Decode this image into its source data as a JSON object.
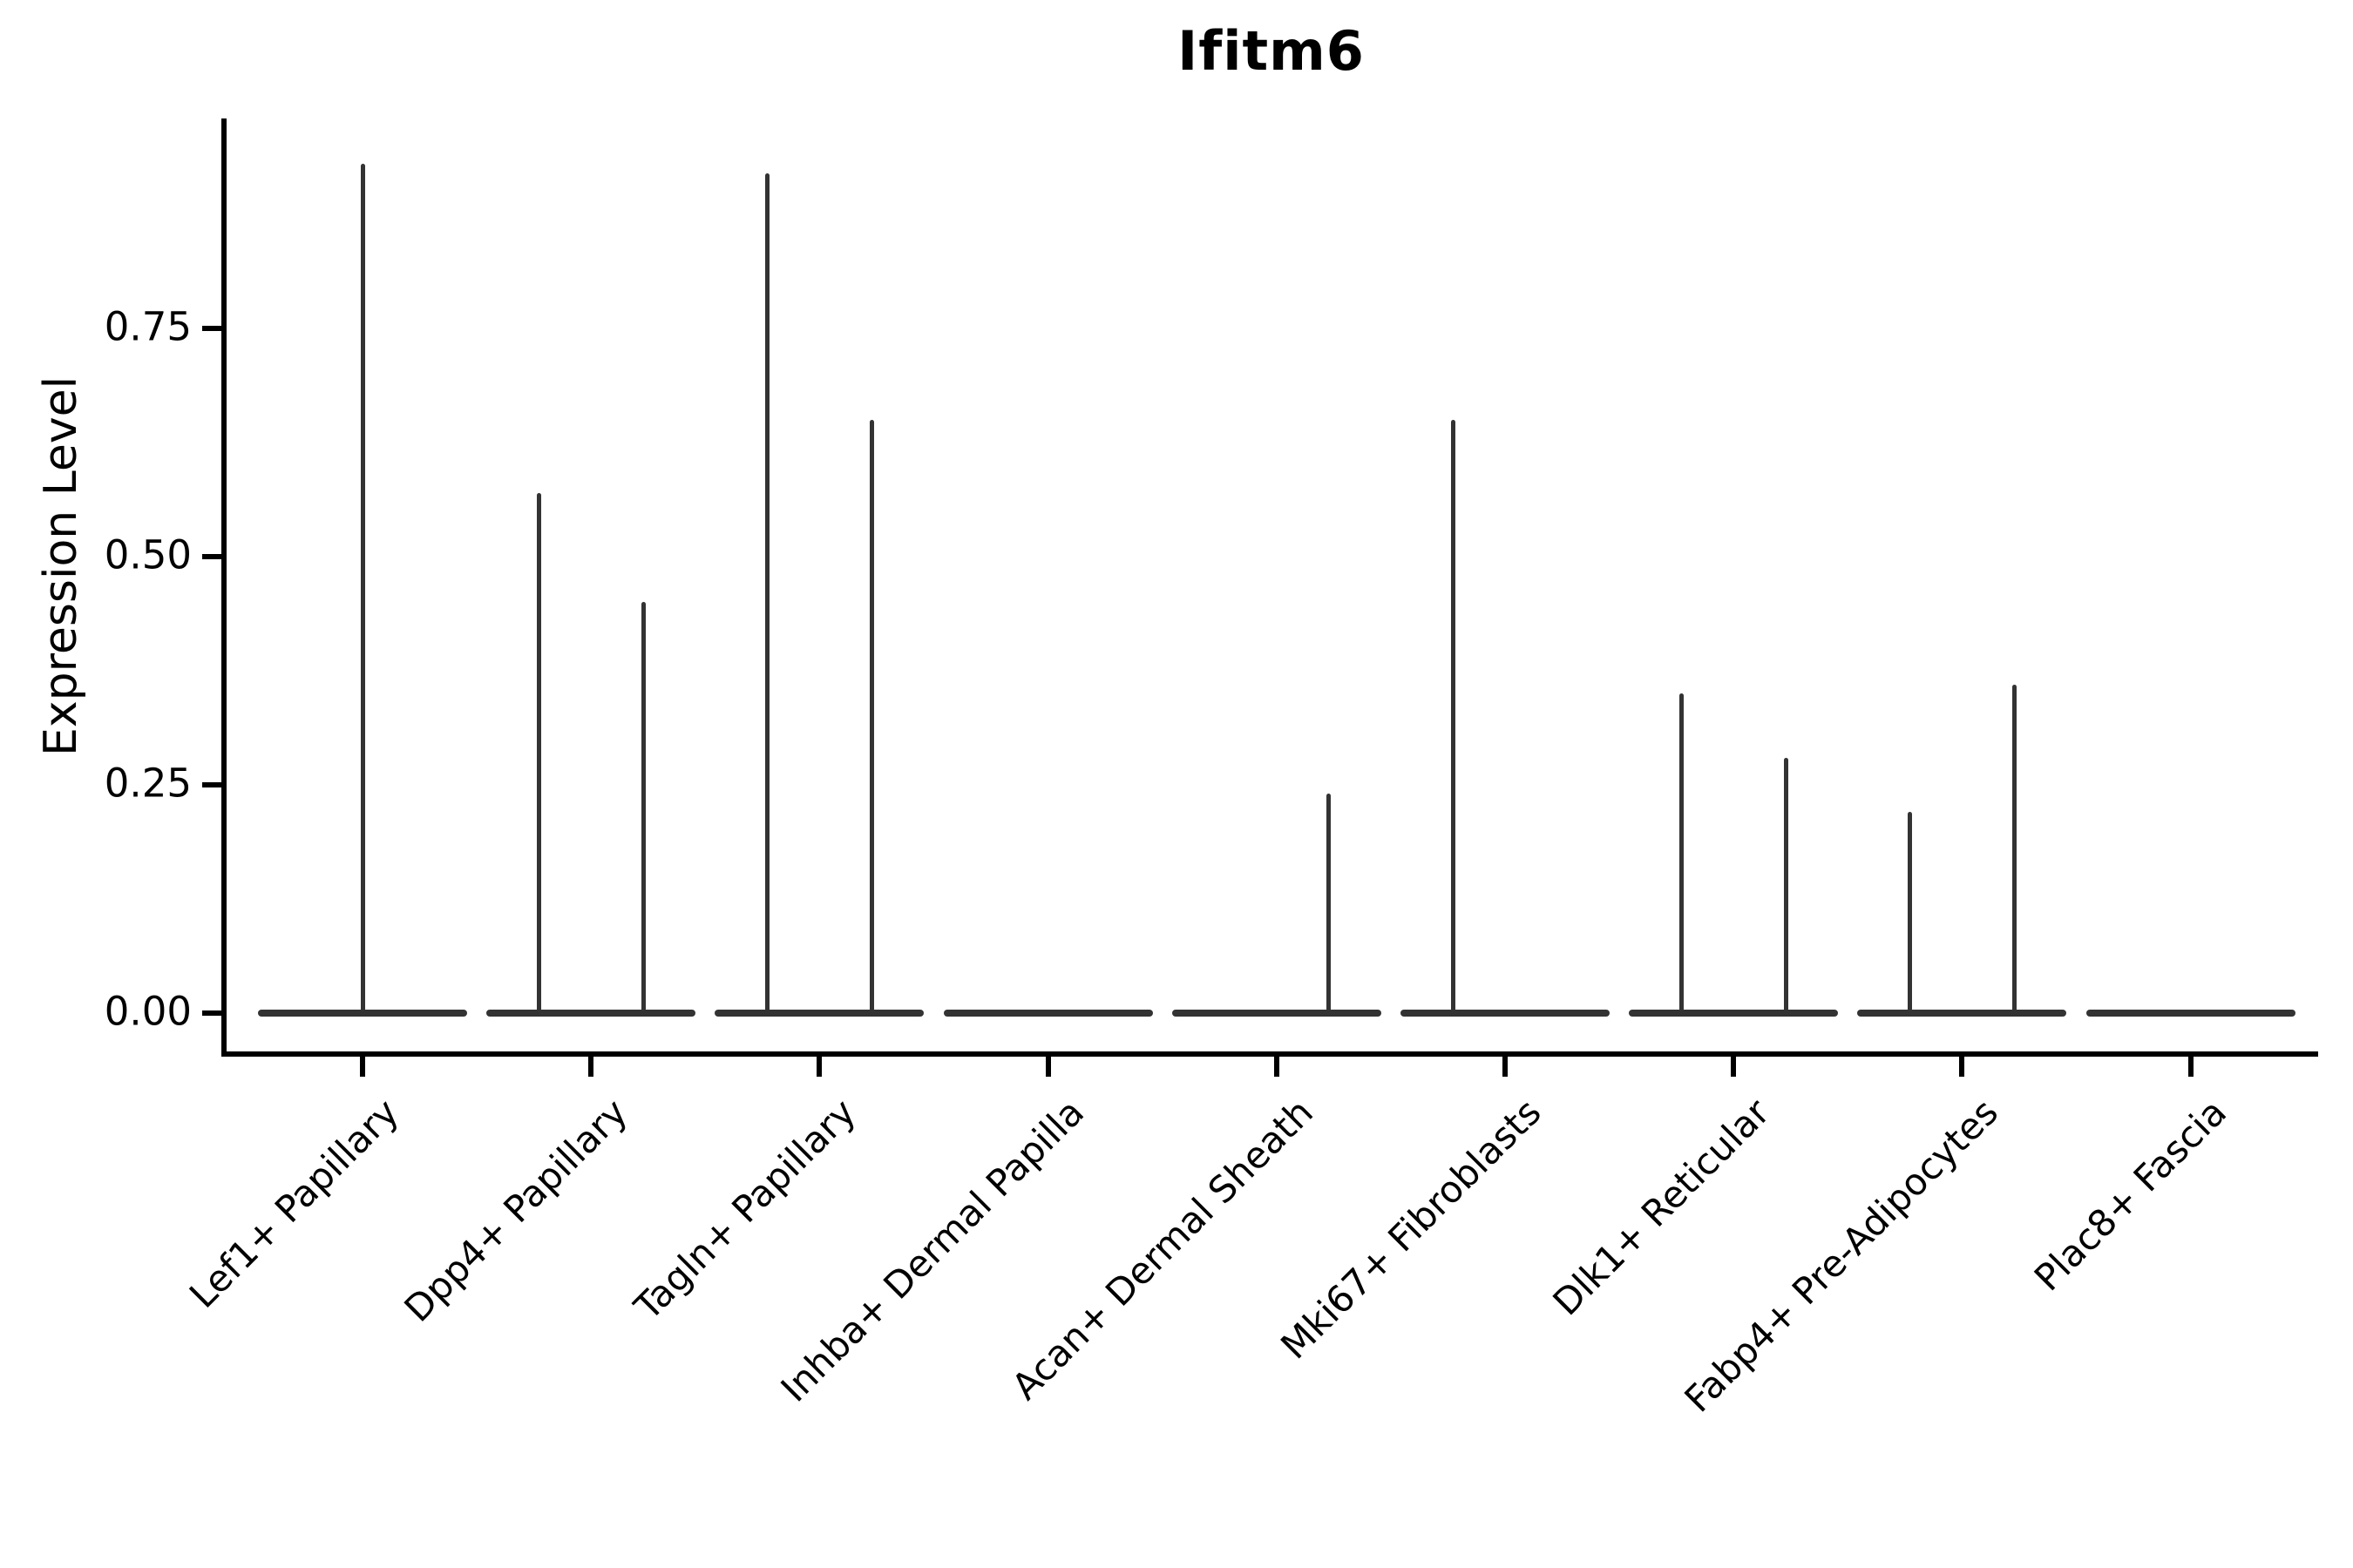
{
  "title": "Ifitm6",
  "ylabel": "Expression Level",
  "colors": {
    "violin": "#333333",
    "axis": "#000000",
    "text": "#000000",
    "background": "#ffffff"
  },
  "chart_data": {
    "type": "violin",
    "title": "Ifitm6",
    "xlabel": "",
    "ylabel": "Expression Level",
    "ylim": [
      0,
      0.98
    ],
    "ytick_labels": [
      "0.00",
      "0.25",
      "0.50",
      "0.75"
    ],
    "ytick_values": [
      0.0,
      0.25,
      0.5,
      0.75
    ],
    "grid": false,
    "legend": "none",
    "x_labels_rotation_deg": 45,
    "categories": [
      "Lef1+ Papillary",
      "Dpp4+ Papillary",
      "Tagln+ Papillary",
      "Inhba+ Dermal Papilla",
      "Acan+ Dermal Sheath",
      "Mki67+ Fibroblasts",
      "Dlk1+ Reticular",
      "Fabp4+ Pre-Adipocytes",
      "Plac8+ Fascia"
    ],
    "violins": [
      {
        "category": "Lef1+ Papillary",
        "base_value": 0.0,
        "spikes": [
          {
            "position": "center",
            "max": 0.93
          }
        ]
      },
      {
        "category": "Dpp4+ Papillary",
        "base_value": 0.0,
        "spikes": [
          {
            "position": "left",
            "max": 0.57
          },
          {
            "position": "right",
            "max": 0.45
          }
        ]
      },
      {
        "category": "Tagln+ Papillary",
        "base_value": 0.0,
        "spikes": [
          {
            "position": "left",
            "max": 0.92
          },
          {
            "position": "right",
            "max": 0.65
          }
        ]
      },
      {
        "category": "Inhba+ Dermal Papilla",
        "base_value": 0.0,
        "spikes": []
      },
      {
        "category": "Acan+ Dermal Sheath",
        "base_value": 0.0,
        "spikes": [
          {
            "position": "right",
            "max": 0.24
          }
        ]
      },
      {
        "category": "Mki67+ Fibroblasts",
        "base_value": 0.0,
        "spikes": [
          {
            "position": "left",
            "max": 0.65
          }
        ]
      },
      {
        "category": "Dlk1+ Reticular",
        "base_value": 0.0,
        "spikes": [
          {
            "position": "left",
            "max": 0.35
          },
          {
            "position": "right",
            "max": 0.28
          }
        ]
      },
      {
        "category": "Fabp4+ Pre-Adipocytes",
        "base_value": 0.0,
        "spikes": [
          {
            "position": "left",
            "max": 0.22
          },
          {
            "position": "right",
            "max": 0.36
          }
        ]
      },
      {
        "category": "Plac8+ Fascia",
        "base_value": 0.0,
        "spikes": []
      }
    ]
  }
}
